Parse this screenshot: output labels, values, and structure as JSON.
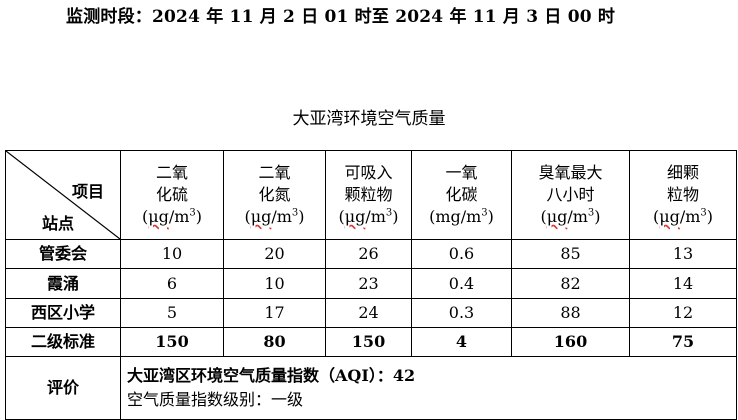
{
  "period": "监测时段：2024 年 11 月 2 日 01 时至 2024 年 11 月 3 日 00 时",
  "table_title": "大亚湾环境空气质量",
  "header": {
    "item_label": "项目",
    "site_label": "站点",
    "columns": [
      {
        "line1": "二氧",
        "line2": "化硫",
        "unit_pre": "(",
        "unit_main": "μg",
        "unit_rest": "/m",
        "unit_exp": "3",
        "unit_post": ")"
      },
      {
        "line1": "二氧",
        "line2": "化氮",
        "unit_pre": "(",
        "unit_main": "μg",
        "unit_rest": "/m",
        "unit_exp": "3",
        "unit_post": ")"
      },
      {
        "line1": "可吸入",
        "line2": "颗粒物",
        "unit_pre": "(",
        "unit_main": "μg",
        "unit_rest": "/m",
        "unit_exp": "3",
        "unit_post": ")"
      },
      {
        "line1": "一氧",
        "line2": "化碳",
        "unit_pre": "(",
        "unit_main": "mg",
        "unit_rest": "/m",
        "unit_exp": "3",
        "unit_post": ")"
      },
      {
        "line1": "臭氧最大",
        "line2": "八小时",
        "unit_pre": "(",
        "unit_main": "μg",
        "unit_rest": "/m",
        "unit_exp": "3",
        "unit_post": ")"
      },
      {
        "line1": "细颗",
        "line2": "粒物",
        "unit_pre": "(",
        "unit_main": "μg",
        "unit_rest": "/m",
        "unit_exp": "3",
        "unit_post": ")"
      }
    ]
  },
  "rows": [
    {
      "site": "管委会",
      "values": [
        "10",
        "20",
        "26",
        "0.6",
        "85",
        "13"
      ]
    },
    {
      "site": "霞涌",
      "values": [
        "6",
        "10",
        "23",
        "0.4",
        "82",
        "14"
      ]
    },
    {
      "site": "西区小学",
      "values": [
        "5",
        "17",
        "24",
        "0.3",
        "88",
        "12"
      ]
    }
  ],
  "standard": {
    "label": "二级标准",
    "values": [
      "150",
      "80",
      "150",
      "4",
      "160",
      "75"
    ]
  },
  "evaluation": {
    "label": "评价",
    "aqi_line": "大亚湾区环境空气质量指数（AQI）：42",
    "level_line": "空气质量指数级别：一级"
  }
}
